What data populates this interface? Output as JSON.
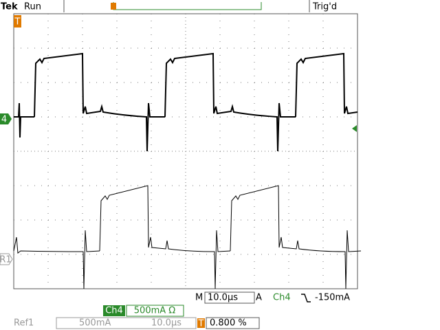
{
  "header": {
    "brand": "Tek",
    "state": "Run",
    "trigger_status": "Trig'd"
  },
  "markers": {
    "channel": "4",
    "reference": "R1",
    "trigger": "T"
  },
  "status_bar": {
    "timebase_label": "M",
    "timebase": "10.0µs",
    "trigger_mode": "A",
    "trigger_source": "Ch4",
    "trigger_level": "-150mA"
  },
  "channel_bar": {
    "channel": "Ch4",
    "scale": "500mA Ω"
  },
  "reference_bar": {
    "name": "Ref1",
    "scale": "500mA",
    "timebase": "10.0µs",
    "trigger_marker": "T",
    "trigger_position": "0.800 %"
  }
}
